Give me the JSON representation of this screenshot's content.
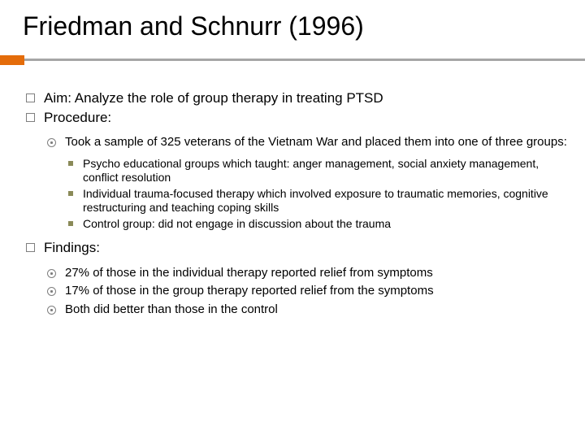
{
  "title": "Friedman and Schnurr (1996)",
  "colors": {
    "accent": "#e46c0a",
    "rule": "#a6a6a6",
    "bullet_outline": "#7f7f7f",
    "square_fill": "#8a8a58",
    "text": "#000000",
    "background": "#ffffff"
  },
  "typography": {
    "title_fontsize": 32,
    "level1_fontsize": 17,
    "level2_fontsize": 15,
    "level3_fontsize": 14,
    "font_family": "Arial"
  },
  "bullets": {
    "aim": "Aim: Analyze the role of group therapy in treating PTSD",
    "procedure": "Procedure:",
    "sample": "Took a sample of 325 veterans of the Vietnam War and placed them into one of three groups:",
    "groups": {
      "g1": "Psycho educational groups which taught: anger management, social anxiety management, conflict resolution",
      "g2": "Individual trauma-focused therapy which involved exposure to traumatic memories, cognitive restructuring and teaching coping skills",
      "g3": "Control group: did not engage in discussion about the trauma"
    },
    "findings": "Findings:",
    "findings_items": {
      "f1": "27% of those in the individual therapy reported relief from symptoms",
      "f2": "17% of those in the group therapy reported relief from the symptoms",
      "f3": "Both did better than those in the control"
    }
  }
}
